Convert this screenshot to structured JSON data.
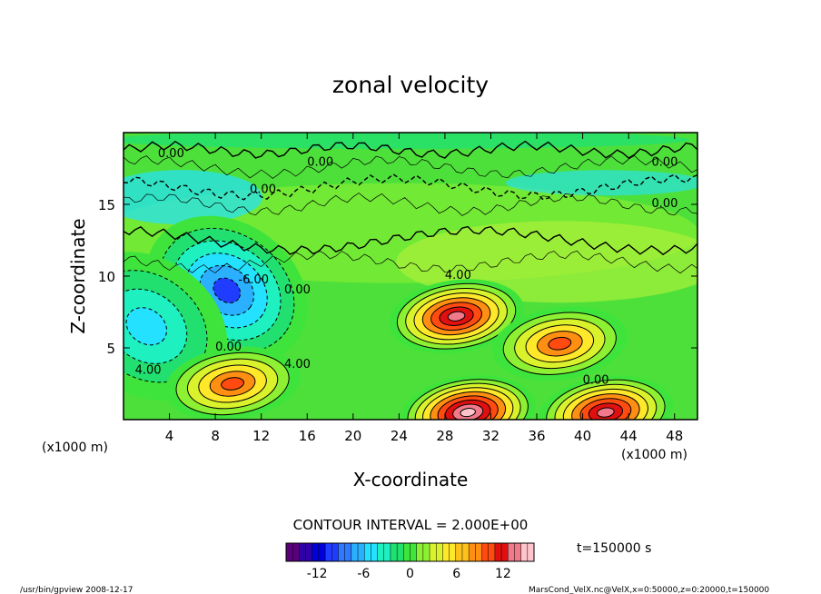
{
  "chart_data": {
    "type": "heatmap",
    "title": "zonal velocity",
    "xlabel": "X-coordinate",
    "ylabel": "Z-coordinate",
    "x_unit_label": "(x1000 m)",
    "y_unit_label": "(x1000 m)",
    "xlim": [
      0,
      50
    ],
    "ylim": [
      0,
      20
    ],
    "x_ticks": [
      "4",
      "8",
      "12",
      "16",
      "20",
      "24",
      "28",
      "32",
      "36",
      "40",
      "44",
      "48"
    ],
    "y_ticks": [
      "5",
      "10",
      "15"
    ],
    "contour_interval_text": "CONTOUR INTERVAL = 2.000E+00",
    "time_text": "t=150000  s",
    "colorbar": {
      "range": [
        -16,
        16
      ],
      "ticks": [
        "-12",
        "-6",
        "0",
        "6",
        "12"
      ],
      "colors": [
        "#5b007a",
        "#2f00a6",
        "#0000d8",
        "#1f3cff",
        "#2f79ff",
        "#2bb0ff",
        "#23e1ff",
        "#1ef0c0",
        "#22e070",
        "#3ee43b",
        "#8ef032",
        "#d9f22c",
        "#ffe82a",
        "#ffc21c",
        "#ff8f12",
        "#ff4a10",
        "#e01010",
        "#f07a8a",
        "#ffc4cc"
      ]
    },
    "contour_labels": [
      "0.00",
      "0.00",
      "0.00",
      "0.00",
      "0.00",
      "4.00",
      "-6.00",
      "0.00",
      "0.00",
      "4.00",
      "4.00",
      "0.00"
    ],
    "features": [
      {
        "kind": "min",
        "x": 9,
        "z": 9,
        "value": -10
      },
      {
        "kind": "min",
        "x": 2,
        "z": 6.5,
        "value": -6
      },
      {
        "kind": "max",
        "x": 29,
        "z": 7.2,
        "value": 14
      },
      {
        "kind": "max",
        "x": 38,
        "z": 5.3,
        "value": 10
      },
      {
        "kind": "max",
        "x": 9.5,
        "z": 2.5,
        "value": 10
      },
      {
        "kind": "max",
        "x": 30,
        "z": 0.5,
        "value": 16
      },
      {
        "kind": "max",
        "x": 42,
        "z": 0.5,
        "value": 14
      }
    ]
  },
  "footer": {
    "left": "/usr/bin/gpview   2008-12-17",
    "right": "MarsCond_VelX.nc@VelX,x=0:50000,z=0:20000,t=150000"
  }
}
